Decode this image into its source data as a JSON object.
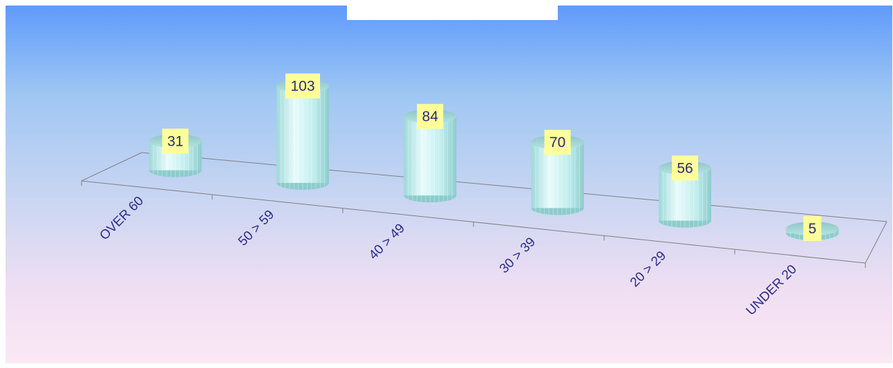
{
  "chart_data": {
    "type": "bar",
    "categories": [
      "OVER 60",
      "50 > 59",
      "40 > 49",
      "30 > 39",
      "20 > 29",
      "UNDER 20"
    ],
    "values": [
      31,
      103,
      84,
      70,
      56,
      5
    ],
    "title": "",
    "xlabel": "",
    "ylabel": "",
    "grid": false,
    "legend": "none",
    "colors": {
      "cylinder": "#bfeeee",
      "label_box": "#ffff99",
      "axis_text": "#2a2c8a"
    }
  }
}
